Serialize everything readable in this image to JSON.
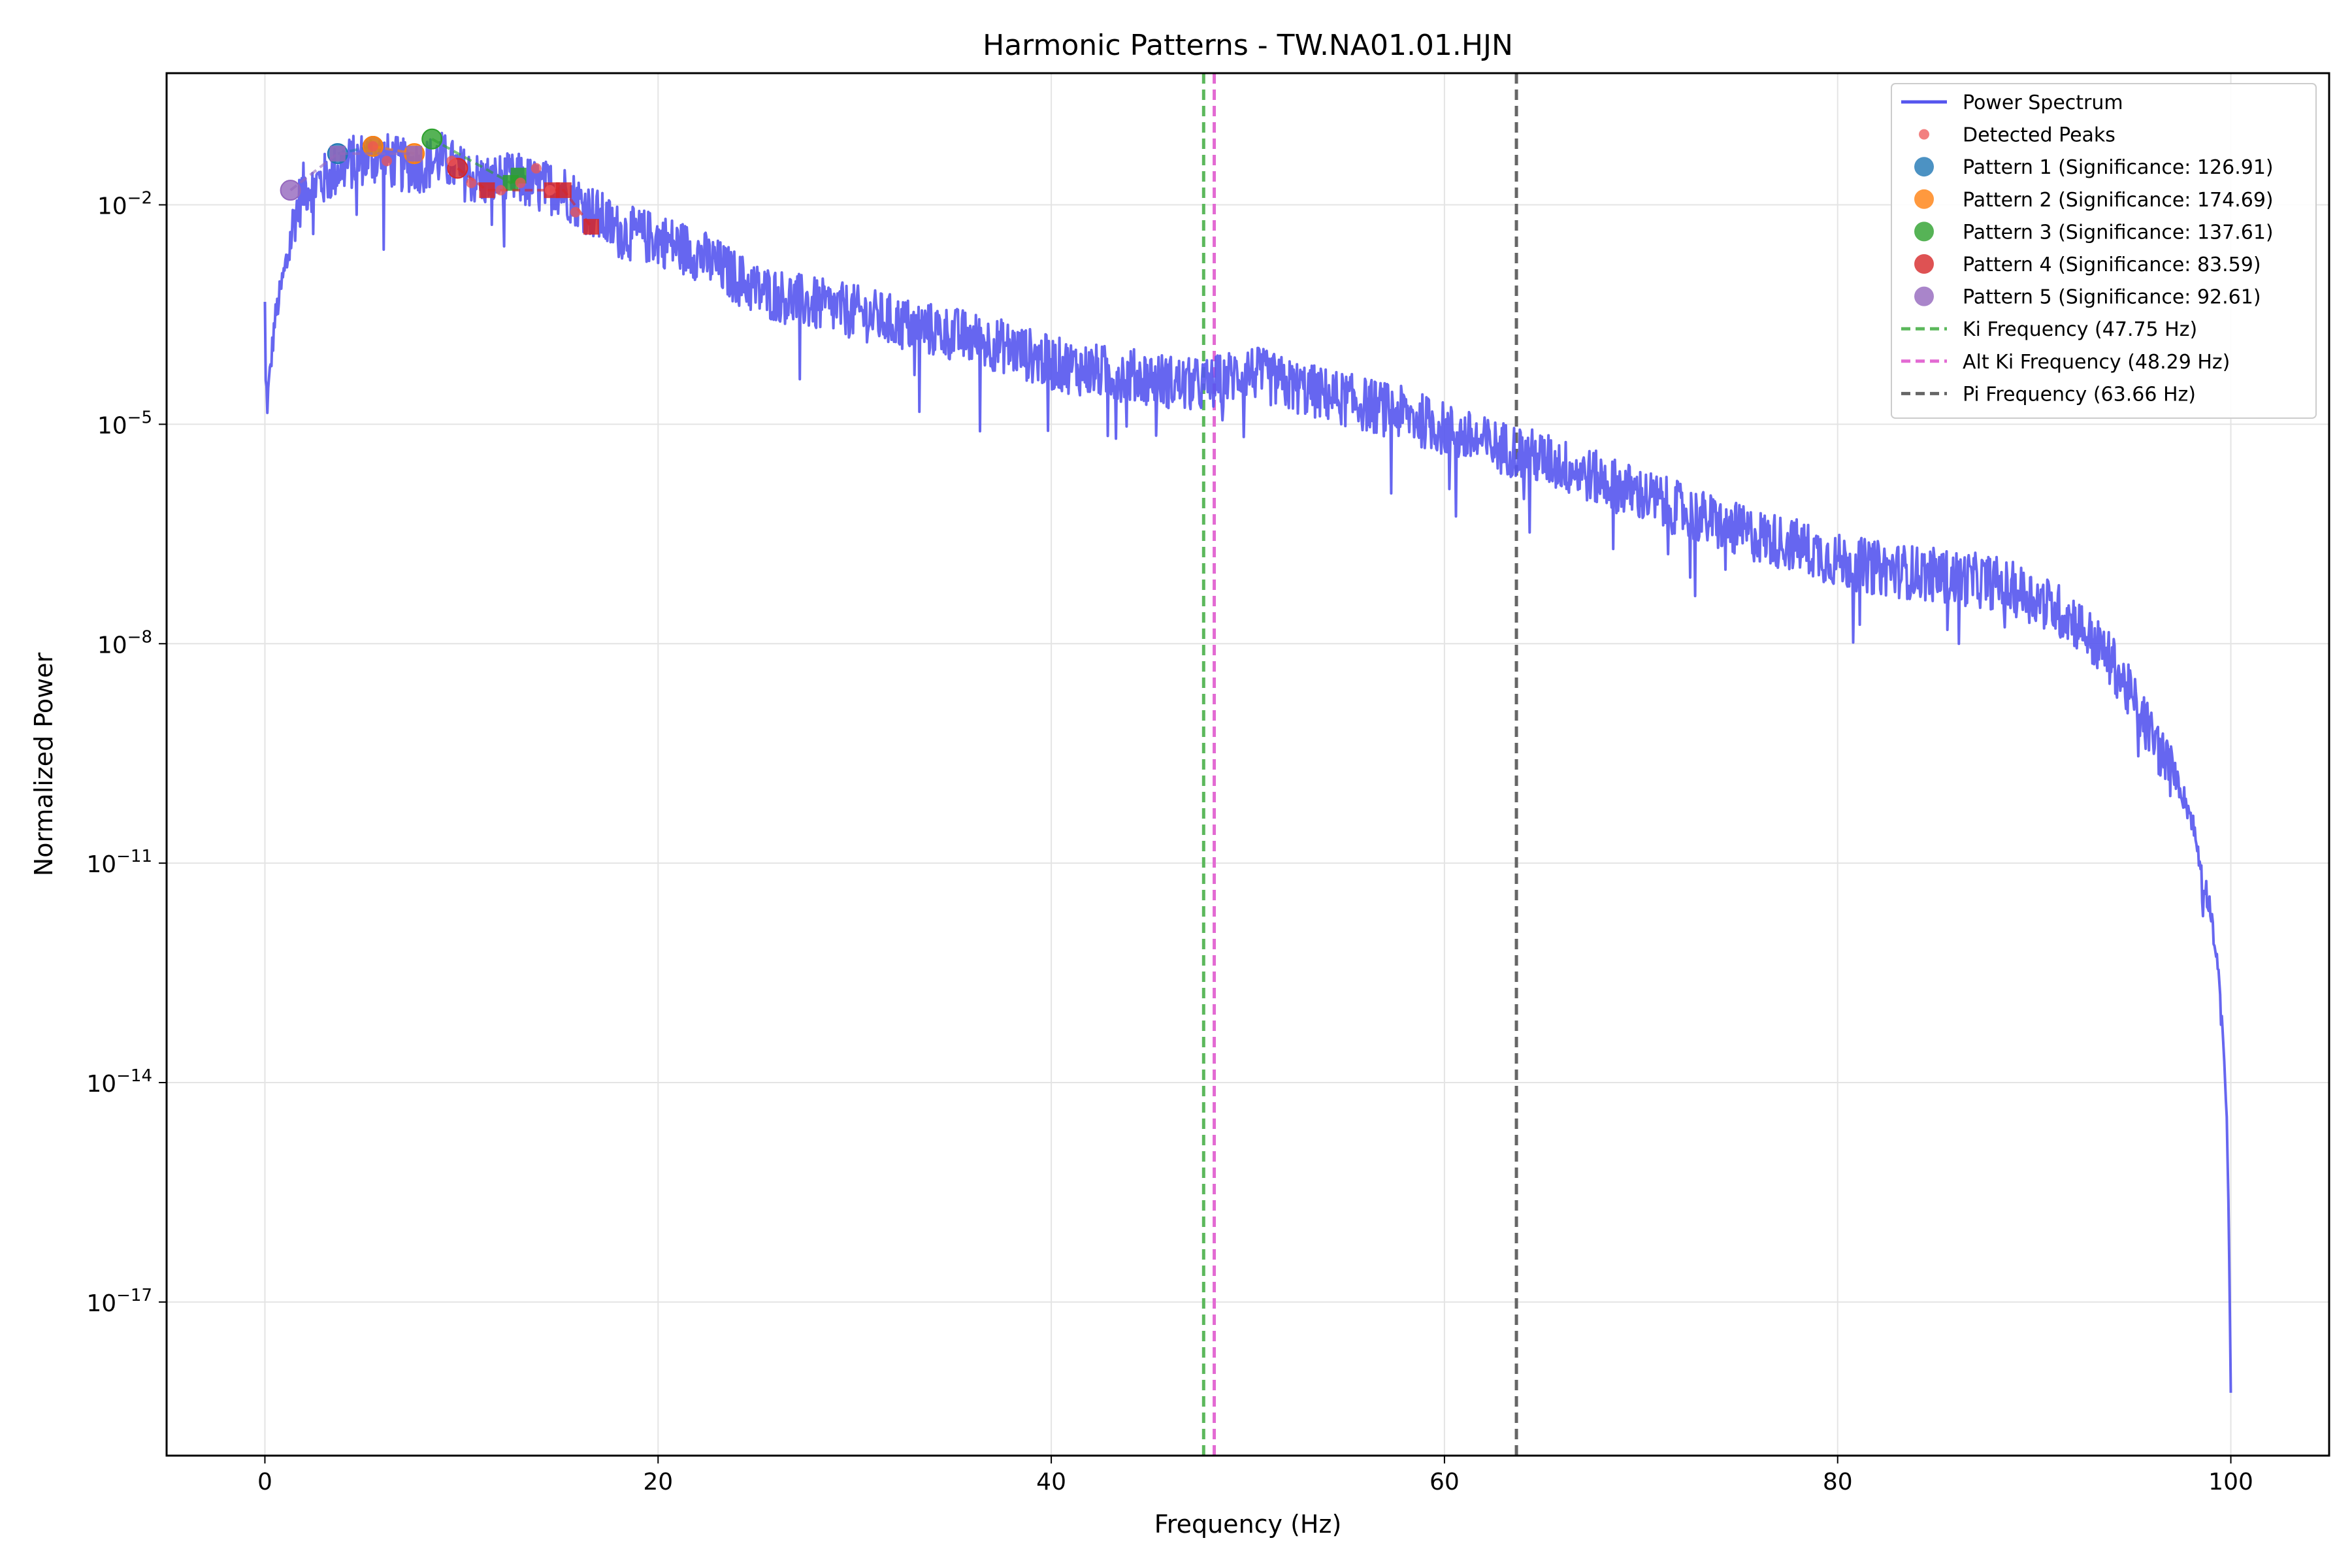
{
  "chart_data": {
    "type": "line",
    "title": "Harmonic Patterns - TW.NA01.01.HJN",
    "xlabel": "Frequency (Hz)",
    "ylabel": "Normalized Power",
    "xlim": [
      -5,
      105
    ],
    "ylim_log10": [
      -19.1,
      -0.2
    ],
    "yscale": "log",
    "grid": true,
    "legend_position": "top-right",
    "x_ticks": [
      {
        "value": 0,
        "label": "0"
      },
      {
        "value": 20,
        "label": "20"
      },
      {
        "value": 40,
        "label": "40"
      },
      {
        "value": 60,
        "label": "60"
      },
      {
        "value": 80,
        "label": "80"
      },
      {
        "value": 100,
        "label": "100"
      }
    ],
    "y_ticks": [
      {
        "exp": -2,
        "base": "10",
        "power": "−2"
      },
      {
        "exp": -5,
        "base": "10",
        "power": "−5"
      },
      {
        "exp": -8,
        "base": "10",
        "power": "−8"
      },
      {
        "exp": -11,
        "base": "10",
        "power": "−11"
      },
      {
        "exp": -14,
        "base": "10",
        "power": "−14"
      },
      {
        "exp": -17,
        "base": "10",
        "power": "−17"
      }
    ],
    "spectrum": {
      "name": "Power Spectrum",
      "color": "#5555ee",
      "x": [
        0,
        0.1,
        0.5,
        1,
        1.5,
        2,
        3,
        4,
        5,
        6,
        7,
        8,
        9,
        10,
        11,
        12,
        13,
        14,
        15,
        16,
        17,
        18,
        20,
        22,
        25,
        28,
        30,
        33,
        35,
        38,
        40,
        42,
        45,
        47,
        48,
        50,
        52,
        55,
        58,
        60,
        62,
        63.7,
        66,
        68,
        70,
        72,
        75,
        78,
        80,
        82,
        85,
        88,
        90,
        92,
        94,
        95,
        96,
        97,
        98,
        98.5,
        99,
        99.3,
        99.6,
        99.8,
        99.9,
        100
      ],
      "y_log10": [
        -3.3,
        -4.7,
        -3.5,
        -2.8,
        -2.0,
        -1.6,
        -1.5,
        -1.3,
        -1.2,
        -1.2,
        -1.3,
        -1.3,
        -1.2,
        -1.4,
        -1.5,
        -1.5,
        -1.5,
        -1.6,
        -1.6,
        -1.8,
        -2.0,
        -2.2,
        -2.3,
        -2.5,
        -3.0,
        -3.2,
        -3.3,
        -3.5,
        -3.6,
        -3.8,
        -4.0,
        -4.1,
        -4.2,
        -4.3,
        -4.3,
        -4.1,
        -4.3,
        -4.5,
        -4.7,
        -4.9,
        -5.1,
        -5.2,
        -5.4,
        -5.6,
        -5.8,
        -6.0,
        -6.3,
        -6.5,
        -6.7,
        -6.8,
        -6.9,
        -7.0,
        -7.2,
        -7.5,
        -8.1,
        -8.6,
        -9.1,
        -9.6,
        -10.3,
        -11.0,
        -11.6,
        -12.3,
        -13.3,
        -14.5,
        -16.0,
        -18.2
      ]
    },
    "detected_peaks": {
      "name": "Detected Peaks",
      "color": "#ee5555",
      "x": [
        5.5,
        6.2,
        9.5,
        10.5,
        12.0,
        13.0,
        13.8,
        14.5,
        15.8
      ],
      "y_log10": [
        -1.2,
        -1.4,
        -1.4,
        -1.7,
        -1.8,
        -1.7,
        -1.5,
        -1.8,
        -2.1
      ]
    },
    "patterns": [
      {
        "name": "Pattern 1 (Significance: 126.91)",
        "color": "#1f77b4",
        "x": [
          3.7,
          5.5
        ],
        "y_log10": [
          -1.3,
          -1.2
        ]
      },
      {
        "name": "Pattern 2 (Significance: 174.69)",
        "color": "#ff7f0e",
        "x": [
          5.5,
          7.6
        ],
        "y_log10": [
          -1.2,
          -1.3
        ]
      },
      {
        "name": "Pattern 3 (Significance: 137.61)",
        "color": "#2ca02c",
        "x": [
          8.5,
          12.5,
          12.9
        ],
        "y_log10": [
          -1.1,
          -1.7,
          -1.6
        ]
      },
      {
        "name": "Pattern 4 (Significance: 83.59)",
        "color": "#d62728",
        "x": [
          9.8,
          11.3,
          14.6,
          15.2,
          16.6
        ],
        "y_log10": [
          -1.5,
          -1.8,
          -1.8,
          -1.8,
          -2.3
        ]
      },
      {
        "name": "Pattern 5 (Significance: 92.61)",
        "color": "#9467bd",
        "x": [
          1.3,
          3.7,
          7.6
        ],
        "y_log10": [
          -1.8,
          -1.3,
          -1.3
        ]
      }
    ],
    "vlines": [
      {
        "name": "Ki Frequency (47.75 Hz)",
        "x": 47.75,
        "color": "#5cb85c"
      },
      {
        "name": "Alt Ki Frequency (48.29 Hz)",
        "x": 48.29,
        "color": "#e36ad3"
      },
      {
        "name": "Pi Frequency (63.66 Hz)",
        "x": 63.66,
        "color": "#666666"
      }
    ]
  }
}
